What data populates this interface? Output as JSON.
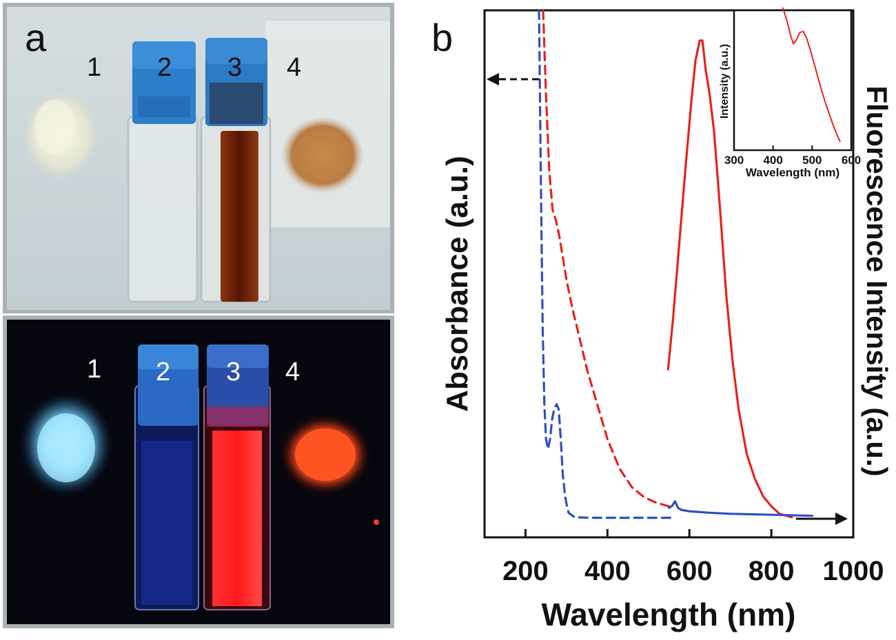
{
  "figure": {
    "panel_a": {
      "label": "a",
      "top_photo_caption": "",
      "sample_numbers_top": [
        "1",
        "2",
        "3",
        "4"
      ],
      "sample_numbers_bottom": [
        "1",
        "2",
        "3",
        "4"
      ],
      "colors": {
        "daylight_background": "#c9d3d7",
        "uv_background": "#05060e",
        "cap_blue": "#1f7fd0",
        "solution_brown": "#6a1a06",
        "powder_orange": "#c98a48",
        "powder_white": "#eeeedc",
        "emission_cyan": "#7fd8ff",
        "emission_red": "#ff2a2a",
        "emission_orange": "#ff5a22"
      }
    },
    "panel_b": {
      "label": "b"
    }
  },
  "chart_data": [
    {
      "type": "line",
      "title": "",
      "xlabel": "Wavelength (nm)",
      "ylabel_left": "Absorbance (a.u.)",
      "ylabel_right": "Fluorescence Intensity (a.u.)",
      "xlim": [
        100,
        1000
      ],
      "ylim": [
        0,
        1
      ],
      "x_ticks": [
        200,
        400,
        600,
        800,
        1000
      ],
      "x_tick_labels": [
        "200",
        "400",
        "600",
        "800",
        "1000"
      ],
      "y_ticks_shown": false,
      "arrows": {
        "left": "absorbance axis (dashed)",
        "right": "fluorescence axis (solid)"
      },
      "series": [
        {
          "name": "absorbance-red",
          "axis": "left",
          "style": "dashed",
          "color": "#e8221d",
          "x": [
            243,
            250,
            258,
            266,
            274,
            282,
            290,
            300,
            315,
            330,
            350,
            375,
            400,
            430,
            460,
            490,
            520,
            550
          ],
          "y": [
            1.02,
            0.85,
            0.7,
            0.62,
            0.6,
            0.57,
            0.53,
            0.48,
            0.42,
            0.37,
            0.3,
            0.23,
            0.16,
            0.1,
            0.063,
            0.043,
            0.032,
            0.025
          ]
        },
        {
          "name": "absorbance-blue",
          "axis": "left",
          "style": "dashed",
          "color": "#2e4fc4",
          "x": [
            233,
            236,
            239,
            242,
            246,
            250,
            255,
            260,
            265,
            270,
            276,
            281,
            286,
            291,
            296,
            300,
            305,
            320,
            360,
            420,
            500,
            560
          ],
          "y": [
            1.02,
            0.8,
            0.58,
            0.38,
            0.23,
            0.16,
            0.14,
            0.16,
            0.2,
            0.22,
            0.23,
            0.22,
            0.16,
            0.09,
            0.05,
            0.03,
            0.012,
            0.003,
            0.002,
            0.002,
            0.002,
            0.002
          ]
        },
        {
          "name": "fluorescence-red",
          "axis": "right",
          "style": "solid",
          "color": "#e8221d",
          "x": [
            548,
            560,
            575,
            590,
            605,
            615,
            625,
            632,
            640,
            648,
            660,
            675,
            690,
            705,
            720,
            740,
            760,
            780,
            800,
            820,
            850
          ],
          "y": [
            0.3,
            0.4,
            0.55,
            0.7,
            0.84,
            0.92,
            0.96,
            0.96,
            0.9,
            0.86,
            0.78,
            0.62,
            0.45,
            0.32,
            0.22,
            0.13,
            0.08,
            0.045,
            0.025,
            0.01,
            0.003
          ]
        },
        {
          "name": "fluorescence-blue",
          "axis": "right",
          "style": "solid",
          "color": "#2e4fc4",
          "x": [
            550,
            558,
            565,
            572,
            580,
            600,
            650,
            700,
            800,
            900
          ],
          "y": [
            0.022,
            0.026,
            0.035,
            0.022,
            0.018,
            0.015,
            0.012,
            0.01,
            0.008,
            0.006
          ]
        }
      ]
    },
    {
      "type": "line",
      "title": "",
      "xlabel": "Wavelength (nm)",
      "ylabel": "Intensity (a.u.)",
      "xlim": [
        300,
        600
      ],
      "ylim": [
        0,
        1
      ],
      "x_ticks": [
        300,
        400,
        500,
        600
      ],
      "x_tick_labels": [
        "300",
        "400",
        "500",
        "600"
      ],
      "series": [
        {
          "name": "inset-excitation",
          "style": "solid",
          "color": "#e8221d",
          "x": [
            425,
            435,
            445,
            452,
            460,
            468,
            477,
            486,
            495,
            505,
            515,
            525,
            535,
            545,
            555,
            565,
            572
          ],
          "y": [
            1.02,
            0.93,
            0.82,
            0.76,
            0.79,
            0.84,
            0.85,
            0.8,
            0.72,
            0.62,
            0.52,
            0.42,
            0.33,
            0.25,
            0.17,
            0.1,
            0.06
          ]
        }
      ]
    }
  ]
}
